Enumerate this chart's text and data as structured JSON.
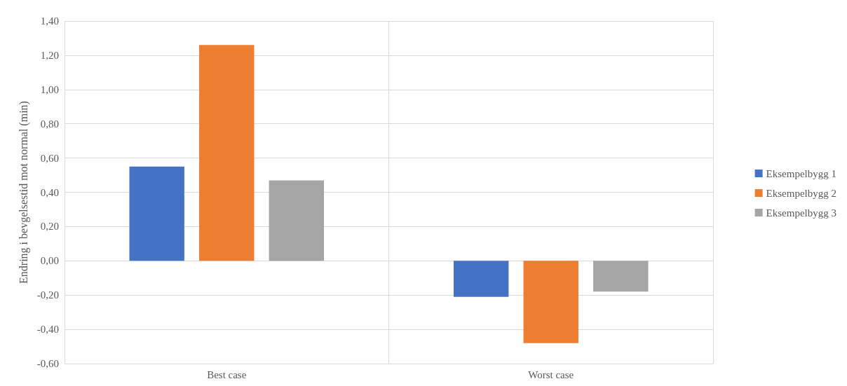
{
  "chart_data": {
    "type": "bar",
    "ylabel": "Endring i bevgelsestid mot normal (min)",
    "categories": [
      "Best case",
      "Worst case"
    ],
    "series": [
      {
        "name": "Eksempelbygg 1",
        "color": "#4472c4",
        "values": [
          0.55,
          -0.21
        ]
      },
      {
        "name": "Eksempelbygg 2",
        "color": "#ed7d31",
        "values": [
          1.26,
          -0.48
        ]
      },
      {
        "name": "Eksempelbygg 3",
        "color": "#a5a5a5",
        "values": [
          0.47,
          -0.18
        ]
      }
    ],
    "ylim": [
      -0.6,
      1.4
    ],
    "yticks": [
      {
        "value": -0.6,
        "label": "-0,60"
      },
      {
        "value": -0.4,
        "label": "-0,40"
      },
      {
        "value": -0.2,
        "label": "-0,20"
      },
      {
        "value": 0,
        "label": "0,00"
      },
      {
        "value": 0.2,
        "label": "0,20"
      },
      {
        "value": 0.4,
        "label": "0,40"
      },
      {
        "value": 0.6,
        "label": "0,60"
      },
      {
        "value": 0.8,
        "label": "0,80"
      },
      {
        "value": 1.0,
        "label": "1,00"
      },
      {
        "value": 1.2,
        "label": "1,20"
      },
      {
        "value": 1.4,
        "label": "1,40"
      }
    ],
    "grid": true,
    "legend": "right"
  }
}
